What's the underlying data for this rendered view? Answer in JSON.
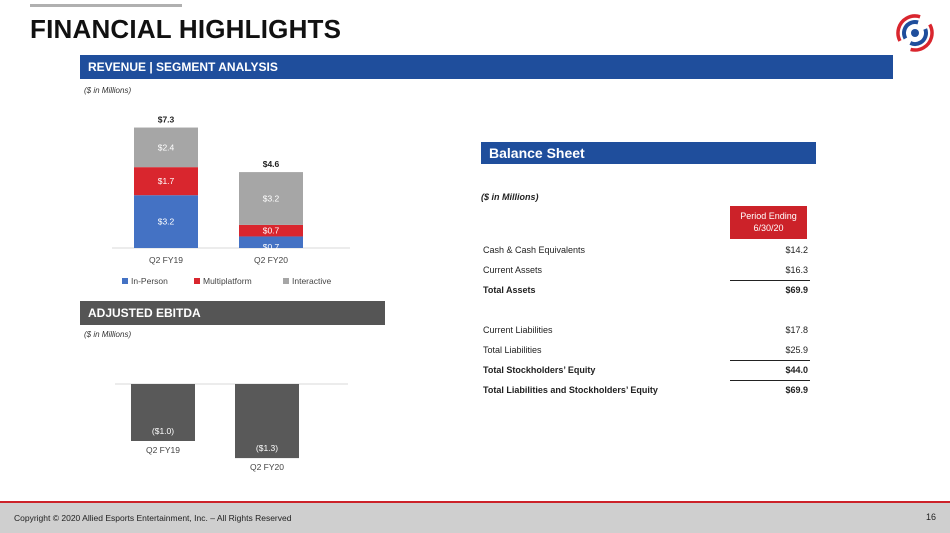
{
  "slide": {
    "title": "FINANCIAL HIGHLIGHTS",
    "logo_icon": "company-logo-icon"
  },
  "revenue": {
    "header": "REVENUE  |  SEGMENT ANALYSIS",
    "note": "($ in Millions)",
    "chart_data": {
      "type": "bar",
      "stacked": true,
      "categories": [
        "Q2 FY19",
        "Q2 FY20"
      ],
      "series": [
        {
          "name": "In-Person",
          "values": [
            3.2,
            0.7
          ],
          "labels": [
            "$3.2",
            "$0.7"
          ],
          "color": "#4472c4"
        },
        {
          "name": "Multiplatform",
          "values": [
            1.7,
            0.7
          ],
          "labels": [
            "$1.7",
            "$0.7"
          ],
          "color": "#d9262e"
        },
        {
          "name": "Interactive",
          "values": [
            2.4,
            3.2
          ],
          "labels": [
            "$2.4",
            "$3.2"
          ],
          "color": "#a6a6a6"
        }
      ],
      "totals": [
        "$7.3",
        "$4.6"
      ],
      "legend": "bottom"
    }
  },
  "ebitda": {
    "header": "ADJUSTED EBITDA",
    "note": "($ in Millions)",
    "chart_data": {
      "type": "bar",
      "categories": [
        "Q2 FY19",
        "Q2 FY20"
      ],
      "values": [
        -1.0,
        -1.3
      ],
      "labels": [
        "($1.0)",
        "($1.3)"
      ],
      "color": "#595959"
    }
  },
  "balance_sheet": {
    "header": "Balance Sheet",
    "note": "($ in Millions)",
    "period_line1": "Period Ending",
    "period_line2": "6/30/20",
    "rows": [
      {
        "label": "Cash & Cash Equivalents",
        "value": "$14.2"
      },
      {
        "label": "Current Assets",
        "value": "$16.3"
      },
      {
        "label": "Total Assets",
        "value": "$69.9"
      },
      {
        "label": "Current Liabilities",
        "value": "$17.8"
      },
      {
        "label": "Total Liabilities",
        "value": "$25.9"
      },
      {
        "label": "Total Stockholders’ Equity",
        "value": "$44.0"
      },
      {
        "label": "Total Liabilities and Stockholders’ Equity",
        "value": "$69.9"
      }
    ]
  },
  "footer": {
    "copyright": "Copyright © 2020 Allied Esports Entertainment, Inc. – All Rights Reserved",
    "page_number": "16"
  },
  "colors": {
    "brand_blue": "#1f4e9c",
    "brand_red": "#cc2229",
    "ebitda_grey": "#595959"
  }
}
